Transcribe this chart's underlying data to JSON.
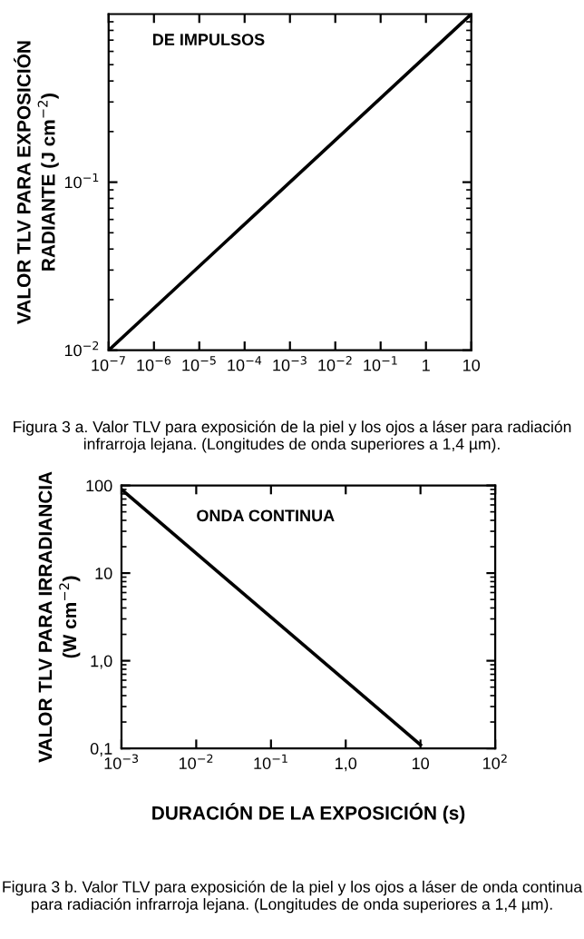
{
  "chart_data": [
    {
      "type": "line",
      "ylabel": "VALOR TLV PARA EXPOSICIÓN\nRADIANTE (J cm$^{−2}$)",
      "x": [
        1e-07,
        10
      ],
      "values": [
        0.01,
        1.0
      ],
      "color": "#000000",
      "log": "xy",
      "xlim": [
        1e-07,
        10
      ],
      "ylim": [
        0.01,
        1
      ],
      "xticks": [
        {
          "value": 1e-07,
          "label": "10$^{−7}$"
        },
        {
          "value": 1e-06,
          "label": "10$^{−6}$"
        },
        {
          "value": 1e-05,
          "label": "10$^{−5}$"
        },
        {
          "value": 0.0001,
          "label": "10$^{−4}$"
        },
        {
          "value": 0.001,
          "label": "10$^{−3}$"
        },
        {
          "value": 0.01,
          "label": "10$^{−2}$"
        },
        {
          "value": 0.1,
          "label": "10$^{−1}$"
        },
        1,
        10
      ],
      "yticks": [
        {
          "value": 0.01,
          "label": "10$^{−2}$"
        },
        {
          "value": 0.1,
          "label": "10$^{−1}$"
        }
      ],
      "annotations": [
        "DE IMPULSOS",
        "Figura 3 a. Valor TLV para exposición de la piel y los ojos a láser para radiación infrarroja lejana. (Longitudes de onda superiores a 1,4 µm)."
      ]
    },
    {
      "type": "line",
      "ylabel": "VALOR TLV PARA IRRADIANCIA\n(W cm$^{−2}$)",
      "xlabel": "DURACIÓN DE LA EXPOSICIÓN (s)",
      "x": [
        0.001,
        10
      ],
      "values": [
        90,
        0.11
      ],
      "color": "#000000",
      "log": "xy",
      "xlim": [
        0.001,
        100
      ],
      "ylim": [
        0.1,
        100
      ],
      "xticks": [
        {
          "value": 0.001,
          "label": "10$^{−3}$"
        },
        {
          "value": 0.01,
          "label": "10$^{−2}$"
        },
        {
          "value": 0.1,
          "label": "10$^{−1}$"
        },
        {
          "value": 1,
          "label": "1,0"
        },
        10,
        {
          "value": 100,
          "label": "10$^{2}$"
        }
      ],
      "yticks": [
        {
          "value": 0.1,
          "label": "0,1"
        },
        {
          "value": 1,
          "label": "1,0"
        },
        10,
        100
      ],
      "annotations": [
        "ONDA CONTINUA",
        "Figura 3 b. Valor TLV para exposición de la piel y los ojos a láser de onda continua para radiación infrarroja lejana. (Longitudes de onda superiores a 1,4 µm)."
      ]
    }
  ]
}
